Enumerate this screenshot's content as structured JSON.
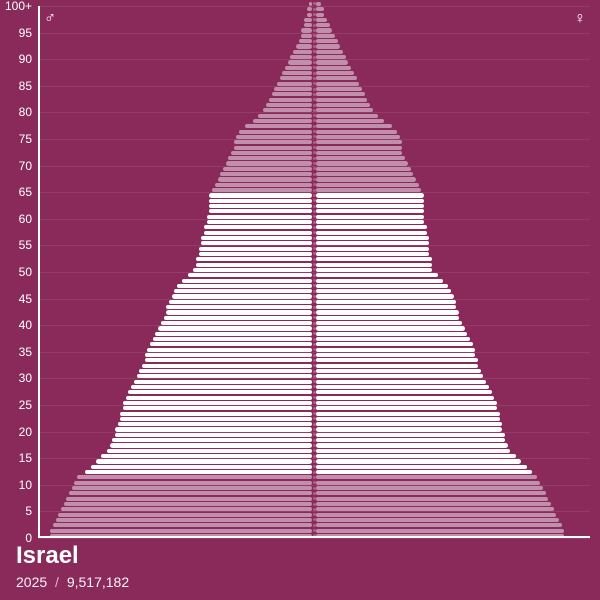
{
  "chart": {
    "type": "population-pyramid",
    "background_color": "#8a2a5b",
    "gridline_color": "#a85d84",
    "axis_color": "#ffffff",
    "text_color": "#ffffff",
    "bar_colors": {
      "primary": "#ffffff",
      "muted": "#c18fab"
    },
    "y": {
      "min": 0,
      "max": 100,
      "tick_step": 5,
      "last_label": "100+"
    },
    "symbols": {
      "male": "♂",
      "female": "♀"
    },
    "muted_ranges": [
      [
        0,
        11
      ],
      [
        65,
        100
      ]
    ],
    "max_value": 100,
    "ages": [
      {
        "age": 0,
        "m": 97,
        "f": 92
      },
      {
        "age": 1,
        "m": 97,
        "f": 92
      },
      {
        "age": 2,
        "m": 96,
        "f": 91
      },
      {
        "age": 3,
        "m": 95,
        "f": 90
      },
      {
        "age": 4,
        "m": 94,
        "f": 89
      },
      {
        "age": 5,
        "m": 93,
        "f": 88
      },
      {
        "age": 6,
        "m": 92,
        "f": 87
      },
      {
        "age": 7,
        "m": 91,
        "f": 86
      },
      {
        "age": 8,
        "m": 90,
        "f": 85
      },
      {
        "age": 9,
        "m": 89,
        "f": 84
      },
      {
        "age": 10,
        "m": 88,
        "f": 83
      },
      {
        "age": 11,
        "m": 87,
        "f": 82
      },
      {
        "age": 12,
        "m": 84,
        "f": 80
      },
      {
        "age": 13,
        "m": 82,
        "f": 78
      },
      {
        "age": 14,
        "m": 80,
        "f": 76
      },
      {
        "age": 15,
        "m": 78,
        "f": 74
      },
      {
        "age": 16,
        "m": 76,
        "f": 72
      },
      {
        "age": 17,
        "m": 75,
        "f": 71
      },
      {
        "age": 18,
        "m": 74,
        "f": 70
      },
      {
        "age": 19,
        "m": 73,
        "f": 70
      },
      {
        "age": 20,
        "m": 73,
        "f": 69
      },
      {
        "age": 21,
        "m": 72,
        "f": 69
      },
      {
        "age": 22,
        "m": 71,
        "f": 68
      },
      {
        "age": 23,
        "m": 71,
        "f": 68
      },
      {
        "age": 24,
        "m": 70,
        "f": 67
      },
      {
        "age": 25,
        "m": 70,
        "f": 67
      },
      {
        "age": 26,
        "m": 69,
        "f": 66
      },
      {
        "age": 27,
        "m": 68,
        "f": 65
      },
      {
        "age": 28,
        "m": 67,
        "f": 64
      },
      {
        "age": 29,
        "m": 66,
        "f": 63
      },
      {
        "age": 30,
        "m": 65,
        "f": 62
      },
      {
        "age": 31,
        "m": 64,
        "f": 61
      },
      {
        "age": 32,
        "m": 63,
        "f": 60
      },
      {
        "age": 33,
        "m": 62,
        "f": 60
      },
      {
        "age": 34,
        "m": 62,
        "f": 59
      },
      {
        "age": 35,
        "m": 61,
        "f": 59
      },
      {
        "age": 36,
        "m": 60,
        "f": 58
      },
      {
        "age": 37,
        "m": 59,
        "f": 57
      },
      {
        "age": 38,
        "m": 58,
        "f": 56
      },
      {
        "age": 39,
        "m": 57,
        "f": 55
      },
      {
        "age": 40,
        "m": 56,
        "f": 54
      },
      {
        "age": 41,
        "m": 55,
        "f": 53
      },
      {
        "age": 42,
        "m": 54,
        "f": 53
      },
      {
        "age": 43,
        "m": 54,
        "f": 52
      },
      {
        "age": 44,
        "m": 53,
        "f": 52
      },
      {
        "age": 45,
        "m": 52,
        "f": 51
      },
      {
        "age": 46,
        "m": 51,
        "f": 50
      },
      {
        "age": 47,
        "m": 50,
        "f": 49
      },
      {
        "age": 48,
        "m": 48,
        "f": 47
      },
      {
        "age": 49,
        "m": 46,
        "f": 45
      },
      {
        "age": 50,
        "m": 44,
        "f": 43
      },
      {
        "age": 51,
        "m": 43,
        "f": 43
      },
      {
        "age": 52,
        "m": 43,
        "f": 43
      },
      {
        "age": 53,
        "m": 42,
        "f": 42
      },
      {
        "age": 54,
        "m": 42,
        "f": 42
      },
      {
        "age": 55,
        "m": 41,
        "f": 42
      },
      {
        "age": 56,
        "m": 41,
        "f": 42
      },
      {
        "age": 57,
        "m": 40,
        "f": 41
      },
      {
        "age": 58,
        "m": 40,
        "f": 41
      },
      {
        "age": 59,
        "m": 39,
        "f": 40
      },
      {
        "age": 60,
        "m": 39,
        "f": 40
      },
      {
        "age": 61,
        "m": 38,
        "f": 40
      },
      {
        "age": 62,
        "m": 38,
        "f": 40
      },
      {
        "age": 63,
        "m": 38,
        "f": 40
      },
      {
        "age": 64,
        "m": 38,
        "f": 40
      },
      {
        "age": 65,
        "m": 37,
        "f": 39
      },
      {
        "age": 66,
        "m": 36,
        "f": 38
      },
      {
        "age": 67,
        "m": 35,
        "f": 37
      },
      {
        "age": 68,
        "m": 34,
        "f": 36
      },
      {
        "age": 69,
        "m": 33,
        "f": 35
      },
      {
        "age": 70,
        "m": 32,
        "f": 34
      },
      {
        "age": 71,
        "m": 31,
        "f": 33
      },
      {
        "age": 72,
        "m": 30,
        "f": 32
      },
      {
        "age": 73,
        "m": 29,
        "f": 32
      },
      {
        "age": 74,
        "m": 29,
        "f": 32
      },
      {
        "age": 75,
        "m": 28,
        "f": 31
      },
      {
        "age": 76,
        "m": 27,
        "f": 30
      },
      {
        "age": 77,
        "m": 25,
        "f": 28
      },
      {
        "age": 78,
        "m": 22,
        "f": 25
      },
      {
        "age": 79,
        "m": 20,
        "f": 23
      },
      {
        "age": 80,
        "m": 18,
        "f": 21
      },
      {
        "age": 81,
        "m": 17,
        "f": 20
      },
      {
        "age": 82,
        "m": 16,
        "f": 19
      },
      {
        "age": 83,
        "m": 15,
        "f": 18
      },
      {
        "age": 84,
        "m": 14,
        "f": 17
      },
      {
        "age": 85,
        "m": 13,
        "f": 16
      },
      {
        "age": 86,
        "m": 12,
        "f": 15
      },
      {
        "age": 87,
        "m": 11,
        "f": 14
      },
      {
        "age": 88,
        "m": 10,
        "f": 13
      },
      {
        "age": 89,
        "m": 9,
        "f": 12
      },
      {
        "age": 90,
        "m": 8,
        "f": 11
      },
      {
        "age": 91,
        "m": 7,
        "f": 10
      },
      {
        "age": 92,
        "m": 6,
        "f": 9
      },
      {
        "age": 93,
        "m": 5,
        "f": 8
      },
      {
        "age": 94,
        "m": 4,
        "f": 7
      },
      {
        "age": 95,
        "m": 4,
        "f": 6
      },
      {
        "age": 96,
        "m": 3,
        "f": 5
      },
      {
        "age": 97,
        "m": 3,
        "f": 4
      },
      {
        "age": 98,
        "m": 2,
        "f": 3
      },
      {
        "age": 99,
        "m": 2,
        "f": 3
      },
      {
        "age": 100,
        "m": 1,
        "f": 2
      }
    ]
  },
  "footer": {
    "country": "Israel",
    "year": "2025",
    "separator": "/",
    "population": "9,517,182"
  }
}
